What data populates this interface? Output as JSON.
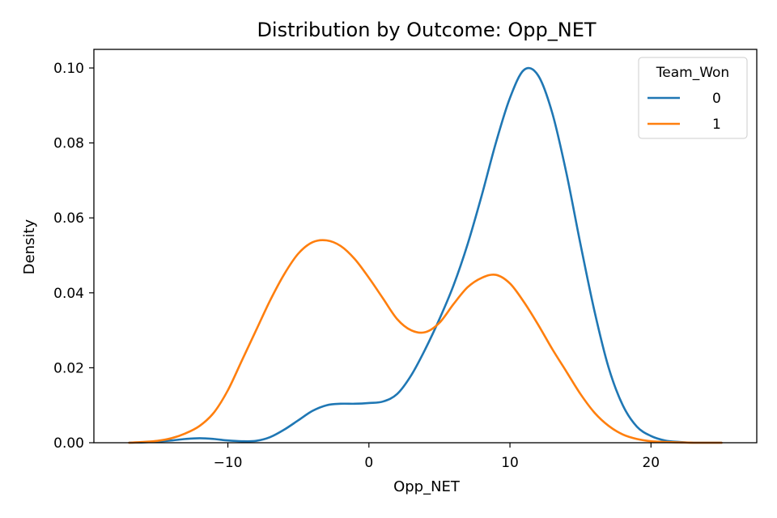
{
  "chart_data": {
    "type": "line",
    "title": "Distribution by Outcome: Opp_NET",
    "xlabel": "Opp_NET",
    "ylabel": "Density",
    "xlim": [
      -19.5,
      27.5
    ],
    "ylim": [
      0,
      0.1
    ],
    "xticks": [
      -10,
      0,
      10,
      20
    ],
    "xtick_labels": [
      "−10",
      "0",
      "10",
      "20"
    ],
    "yticks": [
      0.0,
      0.02,
      0.04,
      0.06,
      0.08,
      0.1
    ],
    "ytick_labels": [
      "0.00",
      "0.02",
      "0.04",
      "0.06",
      "0.08",
      "0.10"
    ],
    "grid": false,
    "legend": {
      "title": "Team_Won",
      "placement": "top-right"
    },
    "series": [
      {
        "name": "0",
        "color": "#1f77b4",
        "x": [
          -17,
          -16,
          -15,
          -14,
          -13,
          -12,
          -11,
          -10,
          -9,
          -8,
          -7,
          -6,
          -5,
          -4,
          -3,
          -2,
          -1,
          0,
          1,
          2,
          3,
          4,
          5,
          6,
          7,
          8,
          9,
          10,
          11,
          12,
          13,
          14,
          15,
          16,
          17,
          18,
          19,
          20,
          21,
          22,
          23,
          24,
          25
        ],
        "y": [
          0.0,
          0.0001,
          0.0003,
          0.0006,
          0.001,
          0.0012,
          0.001,
          0.0006,
          0.0004,
          0.0005,
          0.0015,
          0.0035,
          0.006,
          0.0085,
          0.01,
          0.0104,
          0.0104,
          0.0106,
          0.011,
          0.013,
          0.018,
          0.025,
          0.033,
          0.042,
          0.053,
          0.066,
          0.08,
          0.092,
          0.0995,
          0.098,
          0.088,
          0.072,
          0.053,
          0.035,
          0.02,
          0.01,
          0.0043,
          0.0018,
          0.0006,
          0.0002,
          0.0,
          0.0,
          0.0
        ]
      },
      {
        "name": "1",
        "color": "#ff7f0e",
        "x": [
          -17,
          -16,
          -15,
          -14,
          -13,
          -12,
          -11,
          -10,
          -9,
          -8,
          -7,
          -6,
          -5,
          -4,
          -3,
          -2,
          -1,
          0,
          1,
          2,
          3,
          4,
          5,
          6,
          7,
          8,
          9,
          10,
          11,
          12,
          13,
          14,
          15,
          16,
          17,
          18,
          19,
          20,
          21,
          22,
          23,
          24,
          25
        ],
        "y": [
          0.0,
          0.0002,
          0.0005,
          0.0012,
          0.0025,
          0.0045,
          0.008,
          0.014,
          0.022,
          0.03,
          0.038,
          0.045,
          0.0505,
          0.0535,
          0.054,
          0.0525,
          0.049,
          0.044,
          0.0385,
          0.033,
          0.03,
          0.0295,
          0.032,
          0.037,
          0.0415,
          0.044,
          0.0448,
          0.0425,
          0.0375,
          0.0315,
          0.025,
          0.019,
          0.013,
          0.008,
          0.0045,
          0.0022,
          0.001,
          0.0004,
          0.0002,
          0.0001,
          0.0,
          0.0,
          0.0
        ]
      }
    ]
  }
}
